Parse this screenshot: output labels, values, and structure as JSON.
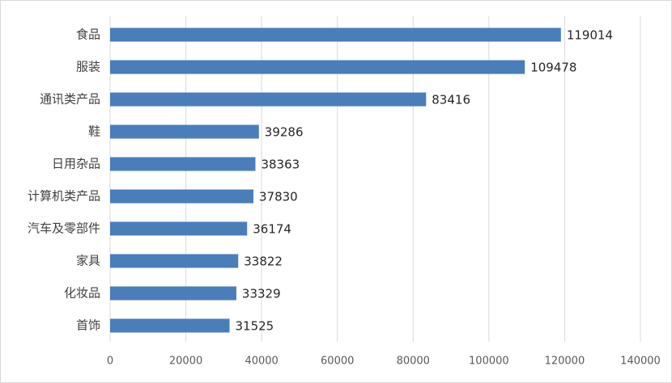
{
  "chart_data": {
    "type": "bar",
    "orientation": "horizontal",
    "categories": [
      "食品",
      "服装",
      "通讯类产品",
      "鞋",
      "日用杂品",
      "计算机类产品",
      "汽车及零部件",
      "家具",
      "化妆品",
      "首饰"
    ],
    "values": [
      119014,
      109478,
      83416,
      39286,
      38363,
      37830,
      36174,
      33822,
      33329,
      31525
    ],
    "color": "#4a7ebb",
    "xlim": [
      0,
      140000
    ],
    "xticks": [
      0,
      20000,
      40000,
      60000,
      80000,
      100000,
      120000,
      140000
    ],
    "grid": true
  }
}
